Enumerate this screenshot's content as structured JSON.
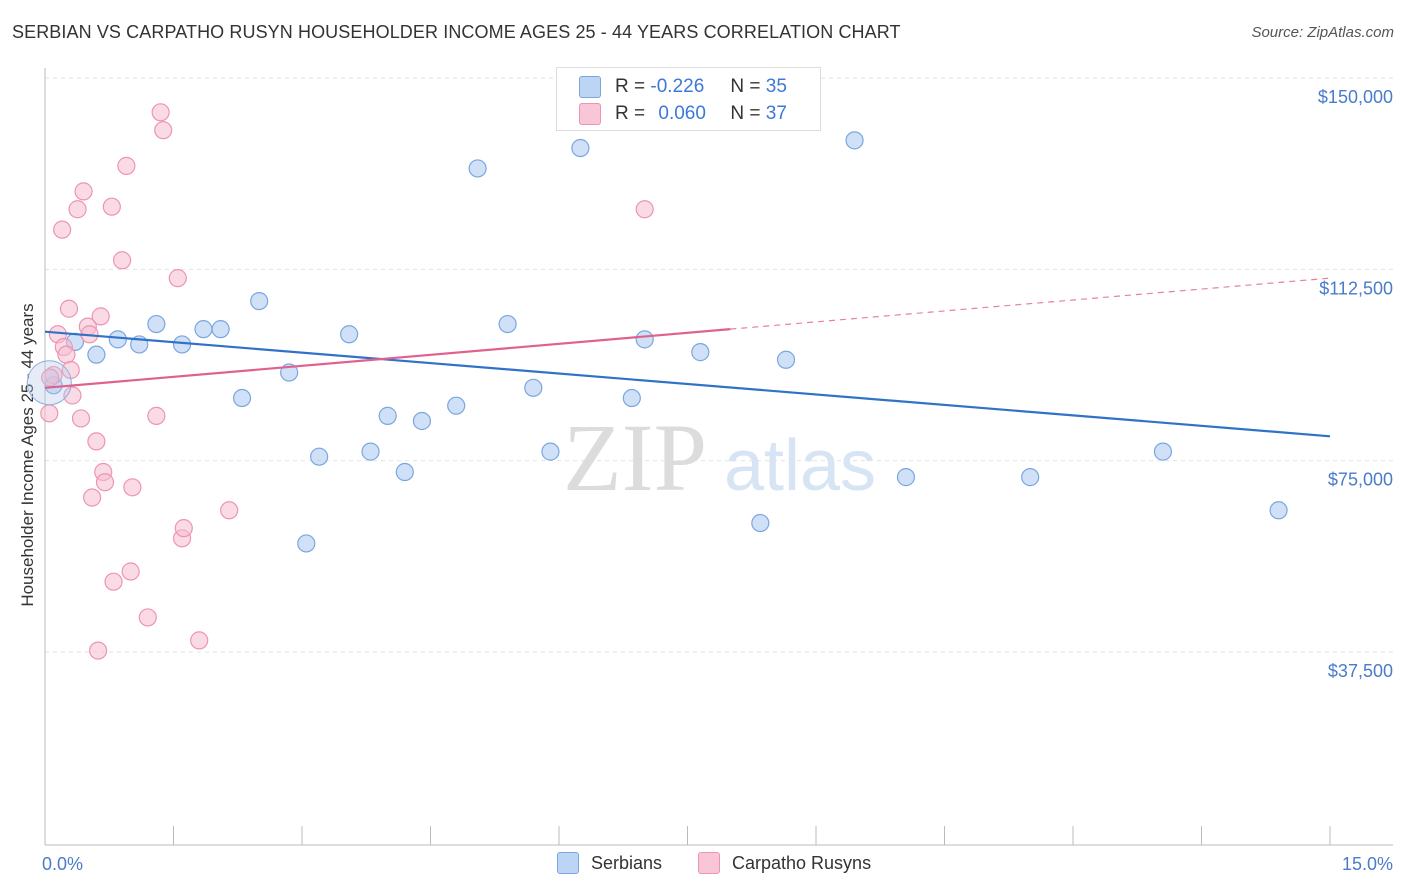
{
  "chart_data": {
    "type": "scatter",
    "title": "SERBIAN VS CARPATHO RUSYN HOUSEHOLDER INCOME AGES 25 - 44 YEARS CORRELATION CHART",
    "source": "Source: ZipAtlas.com",
    "xlabel": "",
    "ylabel": "Householder Income Ages 25 - 44 years",
    "xlim": [
      0,
      15
    ],
    "ylim": [
      0,
      155000
    ],
    "x_tick_labels": [
      "0.0%",
      "15.0%"
    ],
    "y_ticks": [
      {
        "value": 150000,
        "label": "$150,000"
      },
      {
        "value": 112500,
        "label": "$112,500"
      },
      {
        "value": 75000,
        "label": "$75,000"
      },
      {
        "value": 37500,
        "label": "$37,500"
      }
    ],
    "watermark": {
      "part1": "ZIP",
      "part2": "atlas"
    },
    "series": [
      {
        "name": "Serbians",
        "color": "#a9c8f0",
        "edge": "#7aa6e0",
        "line_color": "#3072c8",
        "r": "-0.226",
        "n": "35",
        "trend": {
          "x0": 0.0,
          "y0": 104000,
          "x1": 15.0,
          "y1": 83500
        },
        "points": [
          [
            0.1,
            93500
          ],
          [
            0.35,
            102000
          ],
          [
            0.6,
            99500
          ],
          [
            0.85,
            102500
          ],
          [
            1.1,
            101500
          ],
          [
            1.3,
            105500
          ],
          [
            1.6,
            101500
          ],
          [
            1.85,
            104500
          ],
          [
            2.05,
            104500
          ],
          [
            2.3,
            91000
          ],
          [
            2.5,
            110000
          ],
          [
            2.85,
            96000
          ],
          [
            3.05,
            62500
          ],
          [
            3.2,
            79500
          ],
          [
            3.55,
            103500
          ],
          [
            3.8,
            80500
          ],
          [
            4.0,
            87500
          ],
          [
            4.2,
            76500
          ],
          [
            4.4,
            86500
          ],
          [
            4.8,
            89500
          ],
          [
            5.05,
            136000
          ],
          [
            5.4,
            105500
          ],
          [
            5.7,
            93000
          ],
          [
            5.9,
            80500
          ],
          [
            6.25,
            140000
          ],
          [
            6.85,
            91000
          ],
          [
            7.0,
            102500
          ],
          [
            7.65,
            100000
          ],
          [
            8.35,
            66500
          ],
          [
            8.65,
            98500
          ],
          [
            9.45,
            141500
          ],
          [
            10.05,
            75500
          ],
          [
            11.5,
            75500
          ],
          [
            13.05,
            80500
          ],
          [
            14.4,
            69000
          ]
        ]
      },
      {
        "name": "Carpatho Rusyns",
        "color": "#f6bdd0",
        "edge": "#ee94b3",
        "line_color": "#e0608e",
        "r": "0.060",
        "n": "37",
        "trend": {
          "x0": 0.0,
          "y0": 93000,
          "x1": 8.0,
          "y1": 104500
        },
        "trend_dashed": {
          "x0": 8.0,
          "y0": 104500,
          "x1": 15.0,
          "y1": 114500
        },
        "points": [
          [
            0.05,
            88000
          ],
          [
            0.1,
            95500
          ],
          [
            0.15,
            103500
          ],
          [
            0.2,
            124000
          ],
          [
            0.22,
            101000
          ],
          [
            0.25,
            99500
          ],
          [
            0.28,
            108500
          ],
          [
            0.3,
            96500
          ],
          [
            0.32,
            91500
          ],
          [
            0.38,
            128000
          ],
          [
            0.42,
            87000
          ],
          [
            0.45,
            131500
          ],
          [
            0.5,
            105000
          ],
          [
            0.52,
            103500
          ],
          [
            0.55,
            71500
          ],
          [
            0.6,
            82500
          ],
          [
            0.62,
            41500
          ],
          [
            0.65,
            107000
          ],
          [
            0.68,
            76500
          ],
          [
            0.7,
            74500
          ],
          [
            0.78,
            128500
          ],
          [
            0.8,
            55000
          ],
          [
            0.9,
            118000
          ],
          [
            0.95,
            136500
          ],
          [
            1.0,
            57000
          ],
          [
            1.02,
            73500
          ],
          [
            1.2,
            48000
          ],
          [
            1.3,
            87500
          ],
          [
            1.35,
            147000
          ],
          [
            1.38,
            143500
          ],
          [
            1.55,
            114500
          ],
          [
            1.6,
            63500
          ],
          [
            1.62,
            65500
          ],
          [
            1.8,
            43500
          ],
          [
            2.15,
            69000
          ],
          [
            7.0,
            128000
          ],
          [
            0.06,
            95000
          ]
        ]
      }
    ]
  },
  "legend": {
    "r_label": "R =",
    "n_label": "N =",
    "rows": [
      {
        "r": "-0.226",
        "n": "35"
      },
      {
        "r": "0.060",
        "n": "37"
      }
    ]
  },
  "bottom_legend": [
    "Serbians",
    "Carpatho Rusyns"
  ]
}
